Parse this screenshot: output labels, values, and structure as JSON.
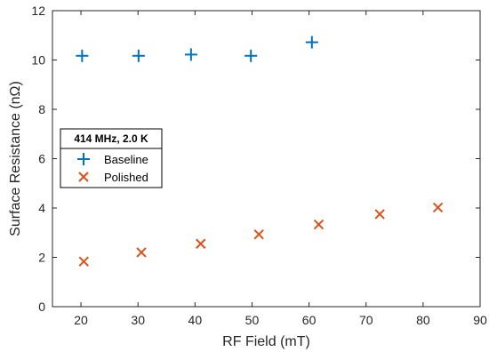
{
  "colors": {
    "baseline": "#0072BD",
    "polished": "#D95319",
    "axis": "#262626",
    "background": "#ffffff"
  },
  "chart_data": {
    "type": "scatter",
    "title": "",
    "xlabel": "RF Field (mT)",
    "ylabel": "Surface Resistance (nΩ)",
    "xlim": [
      15,
      90
    ],
    "ylim": [
      0,
      12
    ],
    "xticks": [
      20,
      30,
      40,
      50,
      60,
      70,
      80,
      90
    ],
    "yticks": [
      0,
      2,
      4,
      6,
      8,
      10,
      12
    ],
    "xtick_labels": [
      "20",
      "30",
      "40",
      "50",
      "60",
      "70",
      "80",
      "90"
    ],
    "ytick_labels": [
      "0",
      "2",
      "4",
      "6",
      "8",
      "10",
      "12"
    ],
    "grid": false,
    "legend": {
      "title": "414 MHz, 2.0 K",
      "position": "left-middle"
    },
    "series": [
      {
        "name": "Baseline",
        "marker": "plus",
        "color": "#0072BD",
        "x": [
          20.2,
          30.1,
          39.3,
          49.8,
          60.5
        ],
        "y": [
          10.17,
          10.17,
          10.22,
          10.17,
          10.72
        ]
      },
      {
        "name": "Polished",
        "marker": "x",
        "color": "#D95319",
        "x": [
          20.5,
          30.6,
          41.0,
          51.2,
          61.7,
          72.4,
          82.6
        ],
        "y": [
          1.83,
          2.2,
          2.55,
          2.93,
          3.33,
          3.75,
          4.02
        ]
      }
    ]
  }
}
